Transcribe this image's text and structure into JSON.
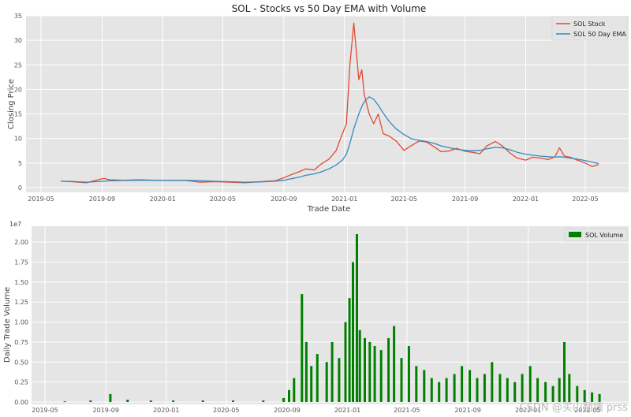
{
  "chart_data": [
    {
      "type": "line",
      "title": "SOL - Stocks vs 50 Day EMA with Volume",
      "xlabel": "Trade Date",
      "ylabel": "Closing Price",
      "ylim": [
        0,
        35
      ],
      "grid": true,
      "legend_position": "top-right",
      "x_tick_labels": [
        "2019-05",
        "2019-09",
        "2020-01",
        "2020-05",
        "2020-09",
        "2021-01",
        "2021-05",
        "2021-09",
        "2022-01",
        "2022-05"
      ],
      "y_tick_labels": [
        "0",
        "5",
        "10",
        "15",
        "20",
        "25",
        "30",
        "35"
      ],
      "x": [
        "2019-06-10",
        "2019-07-01",
        "2019-08-01",
        "2019-09-05",
        "2019-09-15",
        "2019-10-15",
        "2019-11-15",
        "2019-12-15",
        "2020-01-10",
        "2020-02-15",
        "2020-03-15",
        "2020-04-15",
        "2020-05-15",
        "2020-06-15",
        "2020-07-15",
        "2020-08-15",
        "2020-09-01",
        "2020-09-15",
        "2020-10-01",
        "2020-10-15",
        "2020-11-01",
        "2020-11-15",
        "2020-12-01",
        "2020-12-15",
        "2020-12-28",
        "2021-01-05",
        "2021-01-12",
        "2021-01-20",
        "2021-01-30",
        "2021-02-05",
        "2021-02-10",
        "2021-02-20",
        "2021-03-01",
        "2021-03-10",
        "2021-03-20",
        "2021-04-01",
        "2021-04-15",
        "2021-05-01",
        "2021-05-15",
        "2021-06-01",
        "2021-06-15",
        "2021-07-01",
        "2021-07-15",
        "2021-08-01",
        "2021-08-15",
        "2021-09-01",
        "2021-09-15",
        "2021-10-01",
        "2021-10-15",
        "2021-11-01",
        "2021-11-15",
        "2021-12-01",
        "2021-12-15",
        "2022-01-01",
        "2022-01-15",
        "2022-02-01",
        "2022-02-15",
        "2022-03-01",
        "2022-03-10",
        "2022-03-20",
        "2022-04-01",
        "2022-04-15",
        "2022-05-01",
        "2022-05-15",
        "2022-05-28"
      ],
      "series": [
        {
          "name": "SOL Stock",
          "color": "#e24a33",
          "values": [
            1.3,
            1.2,
            1.0,
            1.9,
            1.6,
            1.5,
            1.6,
            1.5,
            1.5,
            1.5,
            1.1,
            1.2,
            1.1,
            1.0,
            1.2,
            1.4,
            2.0,
            2.6,
            3.2,
            3.8,
            3.6,
            4.8,
            5.8,
            7.5,
            11,
            13,
            25,
            33.5,
            22,
            24,
            19,
            15,
            13,
            15,
            11,
            10.5,
            9.5,
            7.6,
            8.5,
            9.5,
            9.3,
            8.3,
            7.3,
            7.5,
            8.0,
            7.4,
            7.2,
            6.9,
            8.5,
            9.4,
            8.5,
            7.0,
            6.0,
            5.6,
            6.2,
            6.0,
            5.7,
            6.3,
            8.1,
            6.4,
            6.2,
            5.6,
            5.0,
            4.3,
            4.7
          ]
        },
        {
          "name": "SOL 50 Day EMA",
          "color": "#348abd",
          "values": [
            1.3,
            1.25,
            1.1,
            1.3,
            1.4,
            1.45,
            1.5,
            1.5,
            1.5,
            1.5,
            1.4,
            1.3,
            1.2,
            1.1,
            1.15,
            1.3,
            1.5,
            1.8,
            2.1,
            2.5,
            2.8,
            3.2,
            3.8,
            4.6,
            5.6,
            6.8,
            9.0,
            12,
            15,
            16.5,
            17.5,
            18.5,
            18,
            16.8,
            15.2,
            13.5,
            12,
            10.8,
            10,
            9.6,
            9.4,
            9.0,
            8.5,
            8.1,
            7.8,
            7.6,
            7.5,
            7.6,
            7.9,
            8.2,
            8.1,
            7.7,
            7.2,
            6.8,
            6.6,
            6.4,
            6.3,
            6.2,
            6.3,
            6.2,
            6.0,
            5.8,
            5.5,
            5.2,
            4.9
          ]
        }
      ]
    },
    {
      "type": "bar",
      "xlabel": "",
      "ylabel": "Daily Trade Volume",
      "y_offset_label": "1e7",
      "ylim": [
        0,
        2.1
      ],
      "grid": true,
      "legend_position": "top-right",
      "x_tick_labels": [
        "2019-05",
        "2019-09",
        "2020-01",
        "2020-05",
        "2020-09",
        "2021-01",
        "2021-05",
        "2021-09",
        "2022-01",
        "2022-05"
      ],
      "y_tick_labels": [
        "0.00",
        "0.25",
        "0.50",
        "0.75",
        "1.00",
        "1.25",
        "1.50",
        "1.75",
        "2.00"
      ],
      "x": [
        "2019-06-10",
        "2019-08-01",
        "2019-09-10",
        "2019-10-15",
        "2019-12-01",
        "2020-01-15",
        "2020-03-15",
        "2020-05-15",
        "2020-07-15",
        "2020-08-25",
        "2020-09-05",
        "2020-09-15",
        "2020-10-01",
        "2020-10-10",
        "2020-10-20",
        "2020-11-01",
        "2020-11-20",
        "2020-12-01",
        "2020-12-15",
        "2020-12-28",
        "2021-01-05",
        "2021-01-12",
        "2021-01-20",
        "2021-01-26",
        "2021-02-05",
        "2021-02-15",
        "2021-02-25",
        "2021-03-10",
        "2021-03-25",
        "2021-04-05",
        "2021-04-20",
        "2021-05-05",
        "2021-05-20",
        "2021-06-05",
        "2021-06-20",
        "2021-07-05",
        "2021-07-20",
        "2021-08-05",
        "2021-08-20",
        "2021-09-05",
        "2021-09-20",
        "2021-10-05",
        "2021-10-20",
        "2021-11-05",
        "2021-11-20",
        "2021-12-05",
        "2021-12-20",
        "2022-01-05",
        "2022-01-20",
        "2022-02-05",
        "2022-02-20",
        "2022-03-05",
        "2022-03-15",
        "2022-03-25",
        "2022-04-10",
        "2022-04-25",
        "2022-05-10",
        "2022-05-25"
      ],
      "series": [
        {
          "name": "SOL Volume",
          "color": "#008000",
          "values": [
            0.01,
            0.02,
            0.1,
            0.03,
            0.02,
            0.02,
            0.02,
            0.02,
            0.02,
            0.05,
            0.15,
            0.3,
            1.35,
            0.75,
            0.45,
            0.6,
            0.5,
            0.75,
            0.55,
            1.0,
            1.3,
            1.75,
            2.1,
            0.9,
            0.8,
            0.75,
            0.7,
            0.65,
            0.8,
            0.95,
            0.55,
            0.7,
            0.45,
            0.4,
            0.3,
            0.25,
            0.3,
            0.35,
            0.45,
            0.4,
            0.3,
            0.35,
            0.5,
            0.35,
            0.3,
            0.25,
            0.35,
            0.45,
            0.3,
            0.25,
            0.2,
            0.3,
            0.75,
            0.35,
            0.2,
            0.15,
            0.12,
            0.1
          ]
        }
      ]
    }
  ],
  "watermark": "CSDN @买山翻墙 prss"
}
